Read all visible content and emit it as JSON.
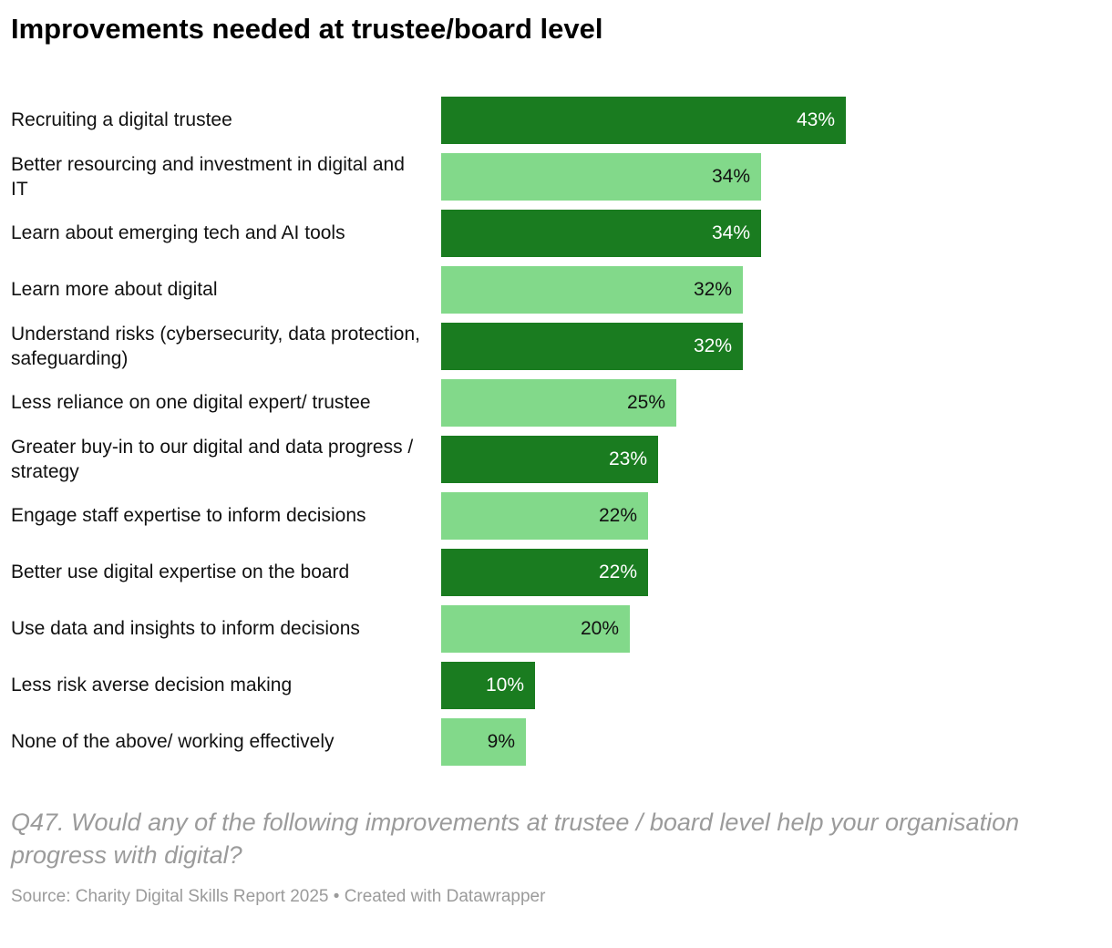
{
  "title": "Improvements needed at trustee/board level",
  "colors": {
    "bar_dark": "#1a7c20",
    "bar_light": "#82d98a",
    "value_on_dark": "#ffffff",
    "value_on_light": "#111111"
  },
  "chart_data": {
    "type": "bar",
    "orientation": "horizontal",
    "title": "Improvements needed at trustee/board level",
    "categories": [
      "Recruiting a digital trustee",
      "Better resourcing and investment in digital and IT",
      "Learn about emerging tech and AI tools",
      "Learn more about digital",
      "Understand risks (cybersecurity, data protection, safeguarding)",
      "Less reliance on one digital expert/ trustee",
      "Greater buy-in to our digital and data progress / strategy",
      "Engage staff expertise to inform decisions",
      "Better use digital expertise on the board",
      "Use data and insights to inform decisions",
      "Less risk averse decision making",
      "None of the above/ working effectively"
    ],
    "values": [
      43,
      34,
      34,
      32,
      32,
      25,
      23,
      22,
      22,
      20,
      10,
      9
    ],
    "value_suffix": "%",
    "xlim": [
      0,
      45
    ],
    "grid": false,
    "legend": "none",
    "bar_color_pattern": "alternating dark/light green"
  },
  "footer": {
    "note": "Q47. Would any of the following improvements at trustee / board level help your organisation progress with digital?",
    "source": "Source: Charity Digital Skills Report 2025 • Created with Datawrapper"
  }
}
